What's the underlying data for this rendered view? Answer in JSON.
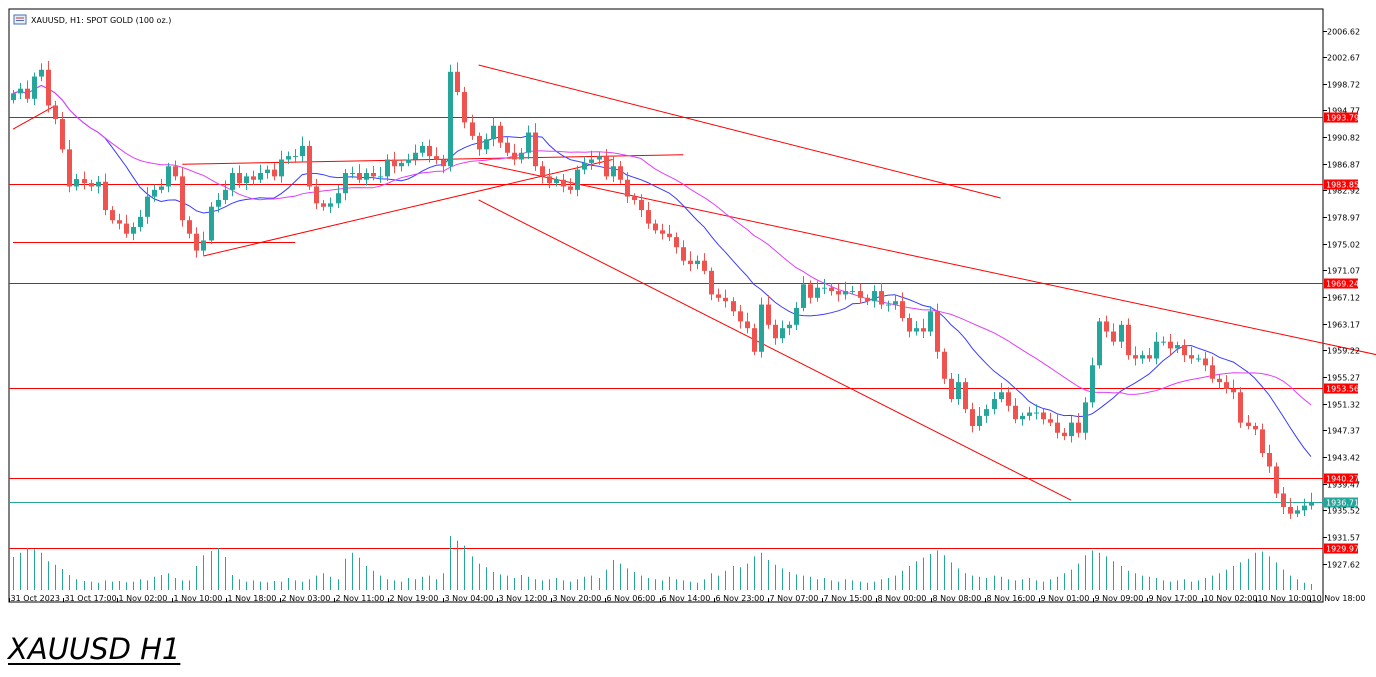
{
  "header": {
    "title": "XAUUSD, H1:  SPOT GOLD (100 oz.)"
  },
  "caption": "XAUUSD H1",
  "colors": {
    "bull": "#26a69a",
    "bear": "#ef5350",
    "ma_fast": "#3b3bff",
    "ma_slow": "#e040fb",
    "level": "#ff0000",
    "current": "#26a69a",
    "volume": "#26a69a"
  },
  "chart_data": {
    "type": "candlestick",
    "symbol": "XAUUSD",
    "timeframe": "H1",
    "ylim": [
      1925.0,
      2009.5
    ],
    "y_ticks": [
      "2006.62",
      "2002.67",
      "1998.72",
      "1994.77",
      "1990.82",
      "1986.87",
      "1982.92",
      "1978.97",
      "1975.02",
      "1971.07",
      "1967.12",
      "1963.17",
      "1959.22",
      "1955.27",
      "1951.32",
      "1947.37",
      "1943.42",
      "1939.47",
      "1935.52",
      "1931.57",
      "1927.62"
    ],
    "x_ticks": [
      "31 Oct 2023",
      "31 Oct 17:00",
      "1 Nov 02:00",
      "1 Nov 10:00",
      "1 Nov 18:00",
      "2 Nov 03:00",
      "2 Nov 11:00",
      "2 Nov 19:00",
      "3 Nov 04:00",
      "3 Nov 12:00",
      "3 Nov 20:00",
      "6 Nov 06:00",
      "6 Nov 14:00",
      "6 Nov 23:00",
      "7 Nov 07:00",
      "7 Nov 15:00",
      "8 Nov 00:00",
      "8 Nov 08:00",
      "8 Nov 16:00",
      "9 Nov 01:00",
      "9 Nov 09:00",
      "9 Nov 17:00",
      "10 Nov 02:00",
      "10 Nov 10:00",
      "10 Nov 18:00"
    ],
    "levels": [
      {
        "value": 1993.79,
        "label": "1993.79"
      },
      {
        "value": 1983.85,
        "label": "1983.85"
      },
      {
        "value": 1969.24,
        "label": "1969.24"
      },
      {
        "value": 1953.56,
        "label": "1953.56"
      },
      {
        "value": 1940.27,
        "label": "1940.27"
      },
      {
        "value": 1929.97,
        "label": "1929.97"
      }
    ],
    "current_price": {
      "value": 1936.71,
      "label": "1936.71"
    },
    "close_path": [
      1997.3,
      1998.0,
      1996.5,
      1999.8,
      2000.8,
      1995.5,
      1993.5,
      1989.0,
      1983.5,
      1984.6,
      1984.0,
      1983.5,
      1984.2,
      1980.0,
      1978.5,
      1978.0,
      1976.5,
      1977.5,
      1979.0,
      1982.0,
      1983.0,
      1983.5,
      1986.5,
      1985.0,
      1978.5,
      1976.5,
      1974.0,
      1975.5,
      1980.5,
      1981.5,
      1983.0,
      1985.5,
      1984.0,
      1985.0,
      1984.5,
      1985.5,
      1986.0,
      1985.0,
      1987.5,
      1988.0,
      1988.0,
      1989.5,
      1983.5,
      1981.0,
      1980.5,
      1981.0,
      1982.5,
      1985.5,
      1985.5,
      1984.5,
      1985.5,
      1985.0,
      1985.0,
      1987.5,
      1986.5,
      1987.0,
      1987.5,
      1988.5,
      1989.5,
      1988.0,
      1987.5,
      1986.5,
      2000.5,
      1997.5,
      1993.0,
      1991.0,
      1989.0,
      1990.5,
      1992.5,
      1990.0,
      1988.5,
      1987.5,
      1988.5,
      1991.5,
      1986.5,
      1985.0,
      1984.0,
      1984.5,
      1983.5,
      1983.0,
      1986.0,
      1987.0,
      1987.5,
      1988.0,
      1985.0,
      1986.5,
      1984.5,
      1982.0,
      1981.5,
      1980.0,
      1978.0,
      1977.0,
      1976.5,
      1976.0,
      1974.5,
      1972.5,
      1972.0,
      1972.5,
      1971.0,
      1967.5,
      1967.0,
      1966.5,
      1965.0,
      1963.5,
      1962.5,
      1959.0,
      1966.0,
      1963.0,
      1961.0,
      1962.5,
      1963.0,
      1965.5,
      1969.0,
      1967.0,
      1968.5,
      1968.5,
      1968.0,
      1967.5,
      1968.0,
      1968.0,
      1967.0,
      1966.5,
      1968.0,
      1966.0,
      1966.0,
      1966.5,
      1964.0,
      1962.0,
      1962.5,
      1962.0,
      1965.0,
      1959.0,
      1955.0,
      1952.0,
      1954.5,
      1950.5,
      1948.0,
      1949.5,
      1950.5,
      1952.0,
      1953.0,
      1951.0,
      1949.0,
      1949.5,
      1950.0,
      1950.0,
      1949.0,
      1948.5,
      1947.0,
      1946.5,
      1948.5,
      1947.0,
      1951.5,
      1957.0,
      1963.5,
      1962.0,
      1960.5,
      1963.0,
      1958.5,
      1958.0,
      1958.5,
      1958.0,
      1960.5,
      1960.5,
      1959.5,
      1960.0,
      1958.5,
      1958.0,
      1958.0,
      1957.0,
      1955.0,
      1954.5,
      1953.5,
      1953.0,
      1948.5,
      1948.0,
      1947.5,
      1944.0,
      1942.0,
      1938.0,
      1936.0,
      1935.0,
      1935.5,
      1936.2,
      1936.71
    ],
    "volume": [
      0.55,
      0.62,
      0.7,
      0.68,
      0.62,
      0.48,
      0.42,
      0.35,
      0.25,
      0.18,
      0.15,
      0.14,
      0.12,
      0.16,
      0.14,
      0.15,
      0.13,
      0.14,
      0.18,
      0.16,
      0.22,
      0.25,
      0.28,
      0.2,
      0.16,
      0.16,
      0.4,
      0.58,
      0.65,
      0.7,
      0.55,
      0.25,
      0.18,
      0.14,
      0.16,
      0.14,
      0.13,
      0.15,
      0.14,
      0.2,
      0.16,
      0.14,
      0.18,
      0.24,
      0.28,
      0.22,
      0.18,
      0.52,
      0.62,
      0.54,
      0.4,
      0.32,
      0.24,
      0.18,
      0.16,
      0.14,
      0.2,
      0.18,
      0.22,
      0.24,
      0.18,
      0.28,
      0.9,
      0.82,
      0.74,
      0.56,
      0.44,
      0.38,
      0.3,
      0.26,
      0.24,
      0.2,
      0.25,
      0.22,
      0.18,
      0.16,
      0.18,
      0.2,
      0.16,
      0.14,
      0.18,
      0.22,
      0.24,
      0.2,
      0.34,
      0.5,
      0.44,
      0.36,
      0.3,
      0.24,
      0.2,
      0.18,
      0.16,
      0.22,
      0.18,
      0.16,
      0.14,
      0.12,
      0.18,
      0.28,
      0.24,
      0.32,
      0.4,
      0.38,
      0.44,
      0.56,
      0.62,
      0.5,
      0.42,
      0.36,
      0.3,
      0.26,
      0.24,
      0.22,
      0.18,
      0.2,
      0.16,
      0.14,
      0.18,
      0.16,
      0.14,
      0.12,
      0.14,
      0.18,
      0.2,
      0.24,
      0.32,
      0.4,
      0.48,
      0.54,
      0.6,
      0.66,
      0.58,
      0.46,
      0.36,
      0.28,
      0.24,
      0.22,
      0.2,
      0.24,
      0.22,
      0.18,
      0.16,
      0.18,
      0.2,
      0.16,
      0.14,
      0.18,
      0.22,
      0.28,
      0.34,
      0.44,
      0.58,
      0.66,
      0.62,
      0.56,
      0.48,
      0.4,
      0.32,
      0.28,
      0.24,
      0.22,
      0.2,
      0.16,
      0.14,
      0.16,
      0.18,
      0.14,
      0.16,
      0.2,
      0.24,
      0.28,
      0.34,
      0.4,
      0.46,
      0.52,
      0.62,
      0.64,
      0.56,
      0.46,
      0.34,
      0.24,
      0.18,
      0.12,
      0.1
    ],
    "trendlines": [
      {
        "points": [
          [
            0,
            1992.0
          ],
          [
            6,
            1995.5
          ]
        ]
      },
      {
        "points": [
          [
            0,
            1975.2
          ],
          [
            40,
            1975.2
          ]
        ]
      },
      {
        "points": [
          [
            27,
            1973.2
          ],
          [
            85,
            1987.5
          ]
        ]
      },
      {
        "points": [
          [
            24,
            1986.8
          ],
          [
            95,
            1988.2
          ]
        ]
      },
      {
        "points": [
          [
            66,
            2001.5
          ],
          [
            140,
            1981.8
          ]
        ]
      },
      {
        "points": [
          [
            66,
            1987.0
          ],
          [
            216,
            1953.5
          ]
        ]
      },
      {
        "points": [
          [
            66,
            1981.5
          ],
          [
            150,
            1937.0
          ]
        ]
      }
    ]
  }
}
